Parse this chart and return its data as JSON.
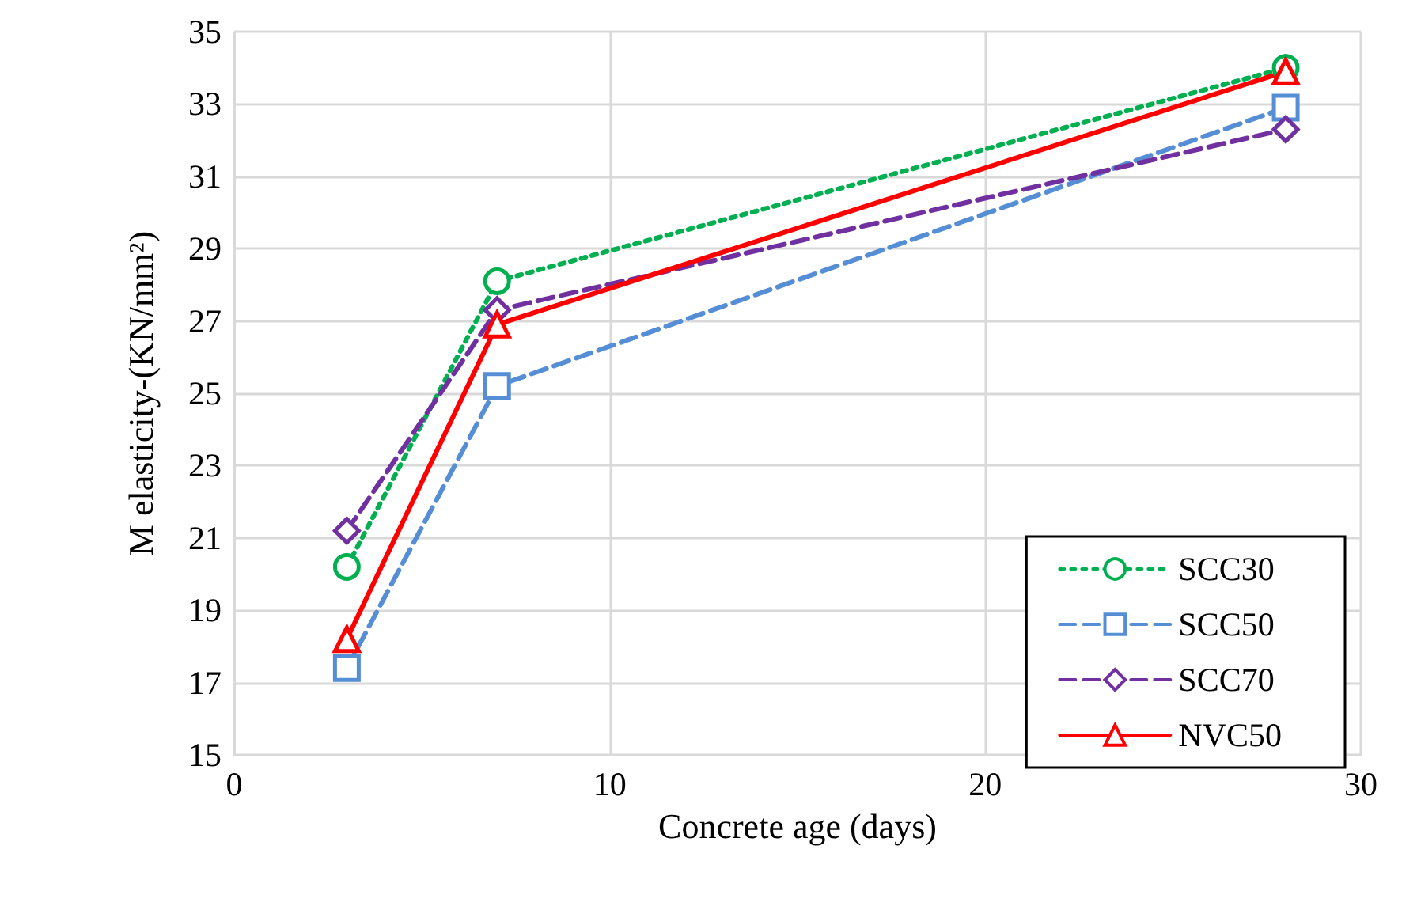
{
  "chart_data": {
    "type": "line",
    "xlabel": "Concrete age (days)",
    "ylabel": "M elasticity-(KN/mm²)",
    "x": [
      3,
      7,
      28
    ],
    "series": [
      {
        "name": "SCC30",
        "color": "#00b050",
        "values": [
          20.2,
          28.1,
          34.0
        ],
        "marker": "circle",
        "line_style": "dotted"
      },
      {
        "name": "SCC50",
        "color": "#558ed5",
        "values": [
          17.4,
          25.2,
          32.9
        ],
        "marker": "square",
        "line_style": "dashed"
      },
      {
        "name": "SCC70",
        "color": "#7030a0",
        "values": [
          21.2,
          27.3,
          32.3
        ],
        "marker": "diamond",
        "line_style": "dashed"
      },
      {
        "name": "NVC50",
        "color": "#ff0000",
        "values": [
          18.2,
          26.9,
          33.9
        ],
        "marker": "triangle",
        "line_style": "solid"
      }
    ],
    "xlim": [
      0,
      30
    ],
    "xticks": [
      0,
      10,
      20,
      30
    ],
    "ylim": [
      15,
      35
    ],
    "yticks": [
      15,
      17,
      19,
      21,
      23,
      25,
      27,
      29,
      31,
      33,
      35
    ],
    "grid": true,
    "legend": "bottom right"
  }
}
